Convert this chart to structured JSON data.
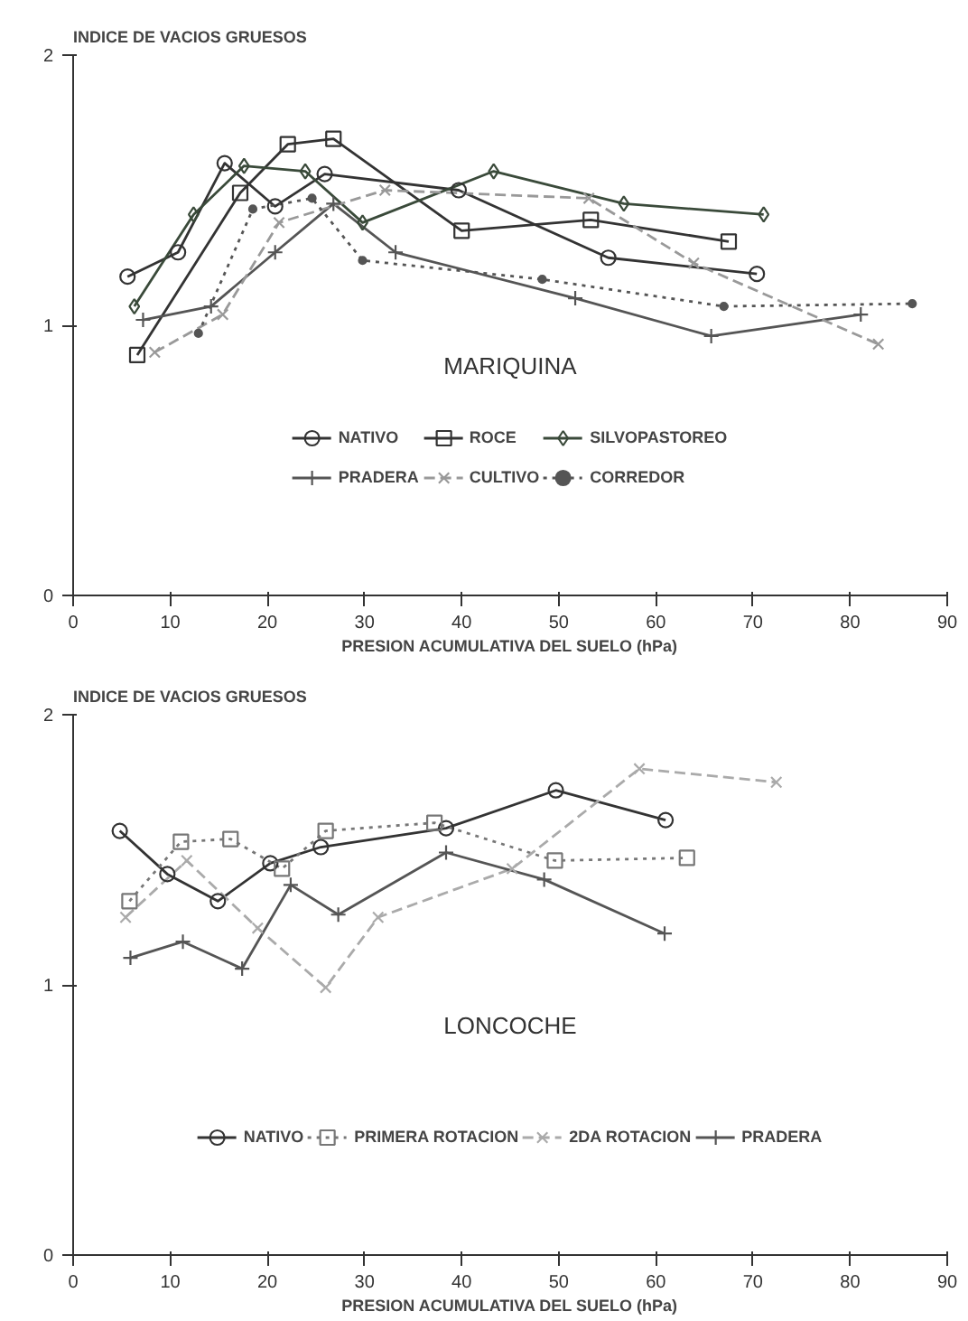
{
  "chart_data": [
    {
      "type": "line",
      "title": "MARIQUINA",
      "ylabel": "INDICE DE VACIOS GRUESOS",
      "xlabel": "PRESION ACUMULATIVA DEL SUELO (hPa)",
      "xlim": [
        0,
        90
      ],
      "xticks": [
        0,
        10,
        20,
        30,
        40,
        50,
        60,
        70,
        80,
        90
      ],
      "ylim": [
        0,
        2
      ],
      "yticks": [
        0,
        1,
        2
      ],
      "grid": false,
      "legend": "bottom",
      "series": [
        {
          "name": "NATIVO",
          "color": "#333333",
          "marker": "circle",
          "line_style": "solid",
          "x": [
            5.6,
            10.8,
            15.6,
            20.8,
            25.9,
            39.7,
            55.1,
            70.4
          ],
          "values": [
            1.18,
            1.27,
            1.6,
            1.44,
            1.56,
            1.5,
            1.25,
            1.19
          ]
        },
        {
          "name": "ROCE",
          "color": "#333333",
          "marker": "square",
          "line_style": "solid",
          "x": [
            6.6,
            17.2,
            22.1,
            26.8,
            40.0,
            53.3,
            67.5
          ],
          "values": [
            0.89,
            1.49,
            1.67,
            1.69,
            1.35,
            1.39,
            1.31
          ]
        },
        {
          "name": "SILVOPASTOREO",
          "color": "#3a4a3a",
          "marker": "diamond",
          "line_style": "solid",
          "x": [
            6.3,
            12.4,
            17.6,
            23.9,
            29.8,
            43.3,
            56.7,
            71.1
          ],
          "values": [
            1.07,
            1.41,
            1.59,
            1.57,
            1.38,
            1.57,
            1.45,
            1.41
          ]
        },
        {
          "name": "PRADERA",
          "color": "#555555",
          "marker": "cross",
          "line_style": "solid",
          "x": [
            7.2,
            14.2,
            20.8,
            26.8,
            33.2,
            51.7,
            65.7,
            81.1
          ],
          "values": [
            1.02,
            1.07,
            1.27,
            1.45,
            1.27,
            1.1,
            0.96,
            1.04
          ]
        },
        {
          "name": "CULTIVO",
          "color": "#999999",
          "marker": "x",
          "line_style": "dashed",
          "x": [
            8.4,
            15.4,
            21.2,
            32.1,
            53.1,
            63.9,
            82.9
          ],
          "values": [
            0.9,
            1.04,
            1.38,
            1.5,
            1.47,
            1.23,
            0.93
          ]
        },
        {
          "name": "CORREDOR",
          "color": "#555555",
          "marker": "circle",
          "line_style": "dotted",
          "x": [
            12.9,
            18.5,
            24.6,
            29.8,
            48.3,
            67.0,
            86.4
          ],
          "values": [
            0.97,
            1.43,
            1.47,
            1.24,
            1.17,
            1.07,
            1.08
          ]
        }
      ]
    },
    {
      "type": "line",
      "title": "LONCOCHE",
      "ylabel": "INDICE DE VACIOS GRUESOS",
      "xlabel": "PRESION ACUMULATIVA DEL SUELO (hPa)",
      "xlim": [
        0,
        90
      ],
      "xticks": [
        0,
        10,
        20,
        30,
        40,
        50,
        60,
        70,
        80,
        90
      ],
      "ylim": [
        0,
        2
      ],
      "yticks": [
        0,
        1,
        2
      ],
      "grid": false,
      "legend": "bottom",
      "series": [
        {
          "name": "NATIVO",
          "color": "#333333",
          "marker": "circle",
          "line_style": "solid",
          "x": [
            4.8,
            9.7,
            14.9,
            20.3,
            25.5,
            38.4,
            49.7,
            61.0
          ],
          "values": [
            1.57,
            1.41,
            1.31,
            1.45,
            1.51,
            1.58,
            1.72,
            1.61
          ]
        },
        {
          "name": "PRIMERA ROTACION",
          "color": "#777777",
          "marker": "square",
          "line_style": "dotted",
          "x": [
            5.8,
            11.1,
            16.2,
            21.5,
            26.0,
            37.2,
            49.6,
            63.2
          ],
          "values": [
            1.31,
            1.53,
            1.54,
            1.43,
            1.57,
            1.6,
            1.46,
            1.47
          ]
        },
        {
          "name": "2DA ROTACION",
          "color": "#aaaaaa",
          "marker": "x",
          "line_style": "dashed",
          "x": [
            5.4,
            11.7,
            19.0,
            26.0,
            31.4,
            45.2,
            58.3,
            72.4
          ],
          "values": [
            1.25,
            1.46,
            1.21,
            0.99,
            1.25,
            1.43,
            1.8,
            1.75
          ]
        },
        {
          "name": "PRADERA",
          "color": "#555555",
          "marker": "cross",
          "line_style": "solid",
          "x": [
            5.9,
            11.3,
            17.4,
            22.4,
            27.3,
            38.4,
            48.5,
            60.9
          ],
          "values": [
            1.1,
            1.16,
            1.06,
            1.37,
            1.26,
            1.49,
            1.39,
            1.19
          ]
        }
      ]
    }
  ]
}
